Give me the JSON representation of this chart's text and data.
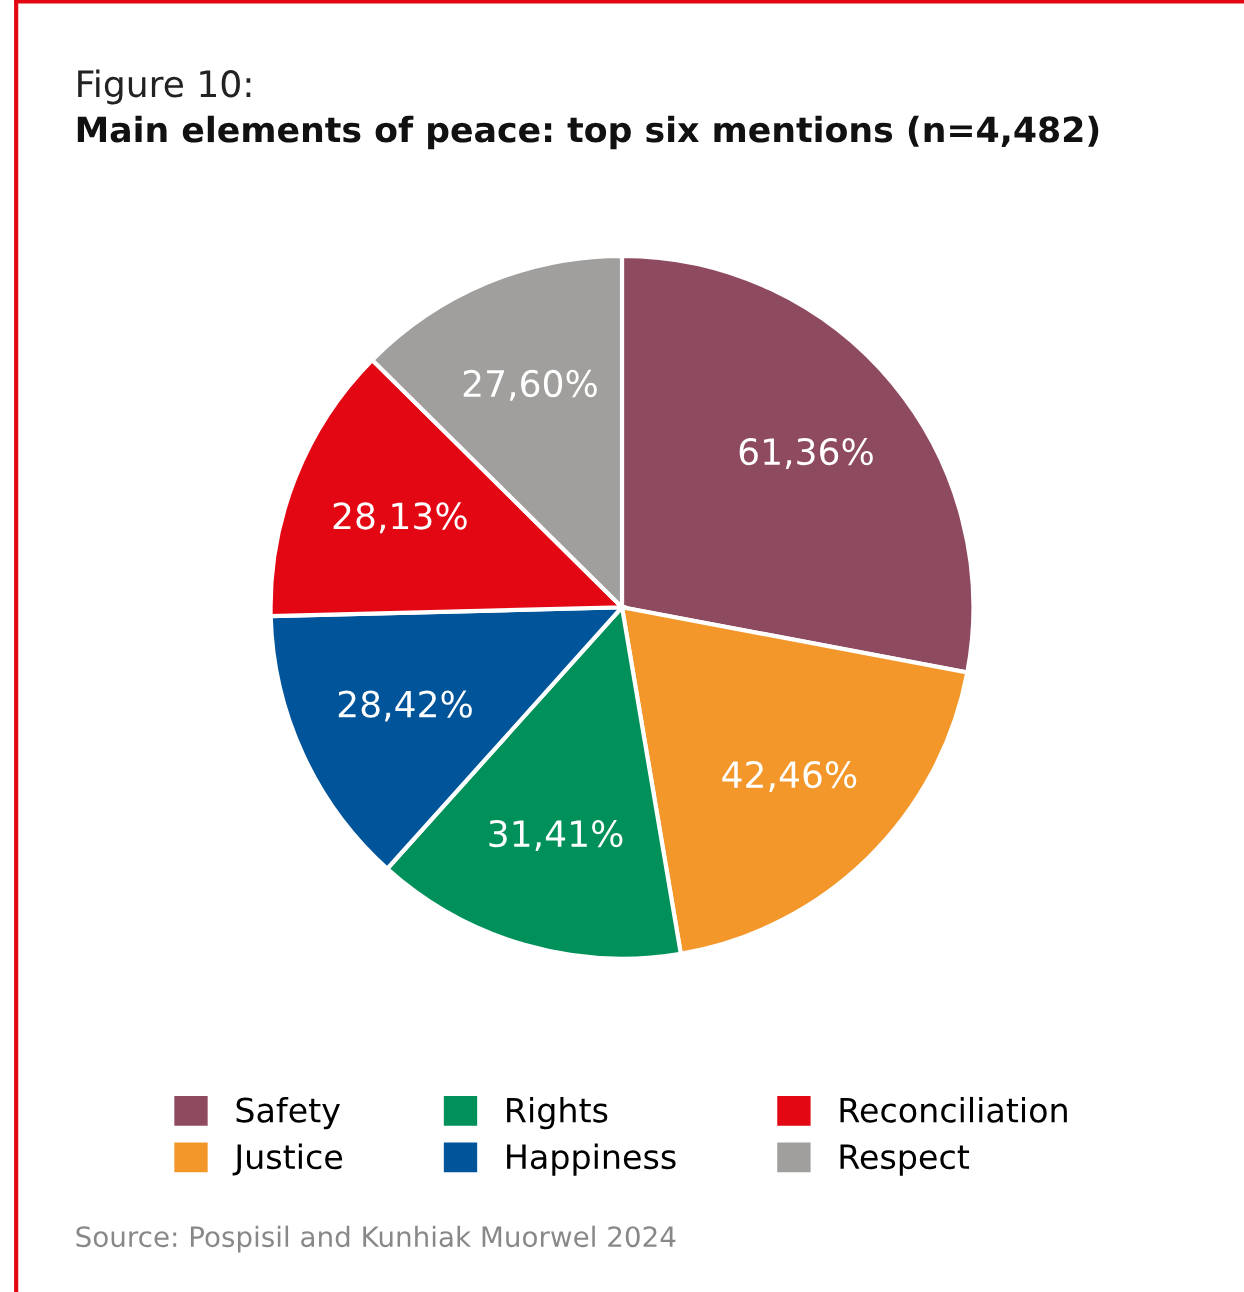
{
  "chart_data": {
    "type": "pie",
    "title": "Figure 10:",
    "subtitle": "Main elements of peace: top six mentions (n=4,482)",
    "categories": [
      "Safety",
      "Justice",
      "Rights",
      "Happiness",
      "Reconciliation",
      "Respect"
    ],
    "values": [
      61.36,
      42.46,
      31.41,
      28.42,
      28.13,
      27.6
    ],
    "value_labels": [
      "61,36%",
      "42,46%",
      "31,41%",
      "28,42%",
      "28,13%",
      "27,60%"
    ],
    "colors": [
      "#8e4b5f",
      "#f3972b",
      "#00915a",
      "#00559a",
      "#e30613",
      "#a09f9d"
    ],
    "legend": "bottom",
    "annotations": [
      "Source: Pospisil and Kunhiak Muorwel 2024"
    ]
  }
}
